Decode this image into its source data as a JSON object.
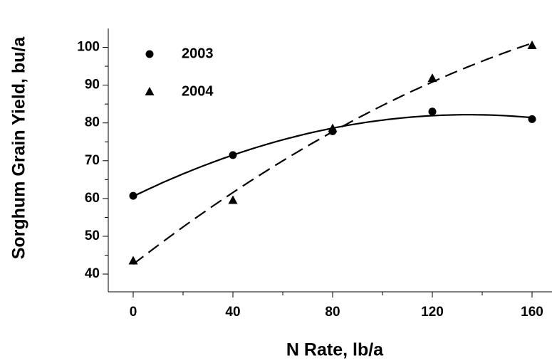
{
  "chart_data": {
    "type": "scatter",
    "x_label": "N Rate, lb/a",
    "y_label": "Sorghum Grain Yield, bu/a",
    "x": [
      0,
      40,
      80,
      120,
      160
    ],
    "series": [
      {
        "name": "2003",
        "color": "#000000",
        "marker": "circle",
        "trendline": "quadratic",
        "dash": false,
        "values": [
          60.7,
          71.5,
          77.8,
          83,
          81
        ]
      },
      {
        "name": "2004",
        "color": "#000000",
        "marker": "triangle",
        "trendline": "quadratic",
        "dash": true,
        "values": [
          43.5,
          59.5,
          78.5,
          91.8,
          100.5
        ]
      }
    ],
    "xlim": [
      -10,
      168
    ],
    "xticks": [
      0,
      40,
      80,
      120,
      160
    ],
    "x_minor_ticks": [
      20,
      60,
      100,
      140
    ],
    "ylim": [
      35.3,
      105
    ],
    "yticks": [
      40,
      50,
      60,
      70,
      80,
      90,
      100
    ],
    "y_minor_ticks": [
      45,
      55,
      65,
      75,
      85,
      95
    ],
    "legend": "upper left",
    "grid": false
  }
}
